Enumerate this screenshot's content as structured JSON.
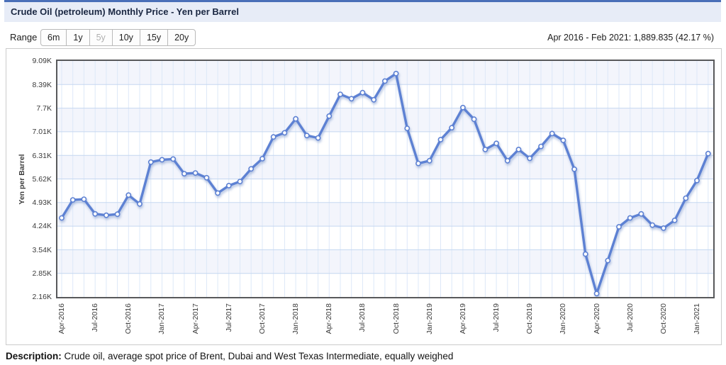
{
  "header": {
    "title": "Crude Oil (petroleum) Monthly Price - Yen per Barrel"
  },
  "range": {
    "label": "Range",
    "options": [
      {
        "label": "6m",
        "selected": false
      },
      {
        "label": "1y",
        "selected": false
      },
      {
        "label": "5y",
        "selected": true
      },
      {
        "label": "10y",
        "selected": false
      },
      {
        "label": "15y",
        "selected": false
      },
      {
        "label": "20y",
        "selected": false
      }
    ],
    "period_summary": "Apr 2016 - Feb 2021: 1,889.835 (42.17 %)"
  },
  "description": {
    "label": "Description:",
    "text": " Crude oil, average spot price of Brent, Dubai and West Texas Intermediate, equally weighed"
  },
  "colors": {
    "accent_bar": "#4a6fb8",
    "titlebar_bg": "#e7ecf7",
    "line": "#5d81d3",
    "marker_fill": "#ffffff",
    "line_shadow": "#9fb2d9",
    "band": "#f3f5fc",
    "grid_h": "#c5d7f0",
    "grid_v": "#dde8f8",
    "plot_border": "#58595b"
  },
  "chart_data": {
    "type": "line",
    "title": "Crude Oil (petroleum) Monthly Price - Yen per Barrel",
    "xlabel": "",
    "ylabel": "Yen per Barrel",
    "legend": false,
    "grid": true,
    "ylim": [
      2160,
      9090
    ],
    "y_ticks": {
      "labels": [
        "9.09K",
        "8.39K",
        "7.7K",
        "7.01K",
        "6.31K",
        "5.62K",
        "4.93K",
        "4.24K",
        "3.54K",
        "2.85K",
        "2.16K"
      ],
      "values": [
        9090,
        8390,
        7700,
        7010,
        6310,
        5620,
        4930,
        4240,
        3540,
        2850,
        2160
      ]
    },
    "x_tick_every": 3,
    "x": [
      "Apr-2016",
      "May-2016",
      "Jun-2016",
      "Jul-2016",
      "Aug-2016",
      "Sep-2016",
      "Oct-2016",
      "Nov-2016",
      "Dec-2016",
      "Jan-2017",
      "Feb-2017",
      "Mar-2017",
      "Apr-2017",
      "May-2017",
      "Jun-2017",
      "Jul-2017",
      "Aug-2017",
      "Sep-2017",
      "Oct-2017",
      "Nov-2017",
      "Dec-2017",
      "Jan-2018",
      "Feb-2018",
      "Mar-2018",
      "Apr-2018",
      "May-2018",
      "Jun-2018",
      "Jul-2018",
      "Aug-2018",
      "Sep-2018",
      "Oct-2018",
      "Nov-2018",
      "Dec-2018",
      "Jan-2019",
      "Feb-2019",
      "Mar-2019",
      "Apr-2019",
      "May-2019",
      "Jun-2019",
      "Jul-2019",
      "Aug-2019",
      "Sep-2019",
      "Oct-2019",
      "Nov-2019",
      "Dec-2019",
      "Jan-2020",
      "Feb-2020",
      "Mar-2020",
      "Apr-2020",
      "May-2020",
      "Jun-2020",
      "Jul-2020",
      "Aug-2020",
      "Sep-2020",
      "Oct-2020",
      "Nov-2020",
      "Dec-2020",
      "Jan-2021",
      "Feb-2021"
    ],
    "series": [
      {
        "name": "Yen per Barrel",
        "values": [
          4480,
          5010,
          5030,
          4600,
          4560,
          4590,
          5150,
          4890,
          6120,
          6190,
          6210,
          5780,
          5800,
          5660,
          5210,
          5430,
          5550,
          5920,
          6220,
          6860,
          6980,
          7390,
          6900,
          6830,
          7470,
          8110,
          7980,
          8160,
          7950,
          8500,
          8720,
          7110,
          6080,
          6160,
          6780,
          7130,
          7720,
          7380,
          6490,
          6670,
          6160,
          6490,
          6230,
          6580,
          6960,
          6760,
          5910,
          3420,
          2260,
          3230,
          4220,
          4480,
          4600,
          4270,
          4180,
          4410,
          5060,
          5580,
          6370
        ]
      }
    ]
  }
}
